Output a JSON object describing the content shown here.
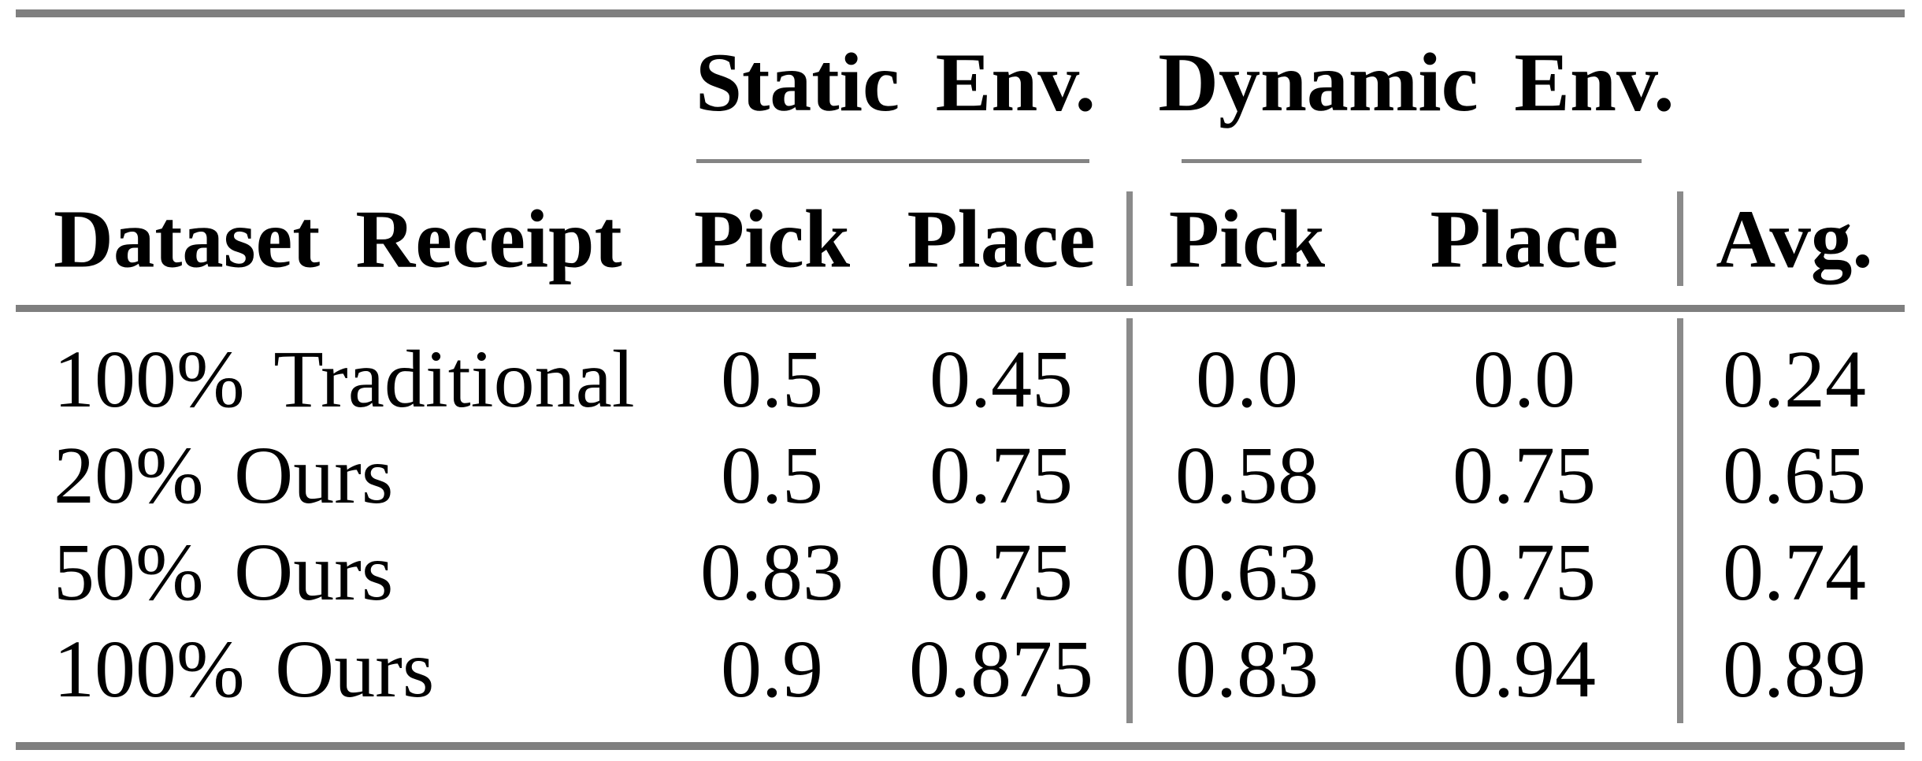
{
  "table": {
    "column_groups": {
      "static": "Static Env.",
      "dynamic": "Dynamic Env."
    },
    "headers": {
      "dataset": "Dataset Receipt",
      "static_pick": "Pick",
      "static_place": "Place",
      "dynamic_pick": "Pick",
      "dynamic_place": "Place",
      "avg": "Avg."
    },
    "rows": [
      {
        "label": "100% Traditional",
        "values": [
          "0.5",
          "0.45",
          "0.0",
          "0.0",
          "0.24"
        ]
      },
      {
        "label": "20% Ours",
        "values": [
          "0.5",
          "0.75",
          "0.58",
          "0.75",
          "0.65"
        ]
      },
      {
        "label": "50% Ours",
        "values": [
          "0.83",
          "0.75",
          "0.63",
          "0.75",
          "0.74"
        ]
      },
      {
        "label": "100% Ours",
        "values": [
          "0.9",
          "0.875",
          "0.83",
          "0.94",
          "0.89"
        ]
      }
    ],
    "colors": {
      "rule_thick": "#7f7f7f",
      "rule_thin": "#848484",
      "rule_vertical": "#8a8a8a",
      "text": "#000000",
      "background": "#ffffff"
    }
  }
}
